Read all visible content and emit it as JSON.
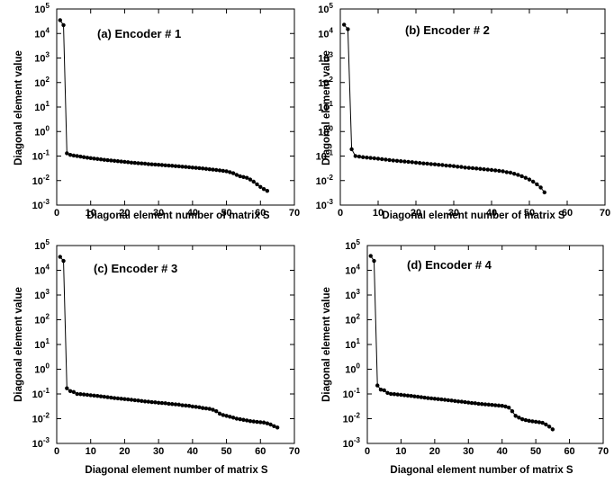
{
  "chart_data": [
    {
      "type": "line",
      "title": "(a)  Encoder  # 1",
      "xlabel": "Diagonal  element  number of  matrix S",
      "ylabel": "Diagonal  element  value",
      "xlim": [
        0,
        70
      ],
      "ylim": [
        0.001,
        100000
      ],
      "yscale": "log",
      "grid": false,
      "xticks": [
        "0",
        "10",
        "20",
        "30",
        "40",
        "50",
        "60",
        "70"
      ],
      "yticks": [
        {
          "base": "10",
          "exp": "-3"
        },
        {
          "base": "10",
          "exp": "-2"
        },
        {
          "base": "10",
          "exp": "-1"
        },
        {
          "base": "10",
          "exp": "0"
        },
        {
          "base": "10",
          "exp": "1"
        },
        {
          "base": "10",
          "exp": "2"
        },
        {
          "base": "10",
          "exp": "3"
        },
        {
          "base": "10",
          "exp": "4"
        },
        {
          "base": "10",
          "exp": "5"
        }
      ],
      "series": [
        {
          "count": 62,
          "values": [
            35000,
            22000,
            0.13,
            0.112,
            0.105,
            0.1,
            0.095,
            0.09,
            0.086,
            0.082,
            0.079,
            0.076,
            0.073,
            0.07,
            0.068,
            0.066,
            0.064,
            0.062,
            0.06,
            0.058,
            0.056,
            0.054,
            0.053,
            0.051,
            0.05,
            0.049,
            0.047,
            0.046,
            0.045,
            0.044,
            0.043,
            0.042,
            0.041,
            0.04,
            0.039,
            0.038,
            0.037,
            0.036,
            0.035,
            0.034,
            0.033,
            0.032,
            0.031,
            0.03,
            0.029,
            0.028,
            0.027,
            0.026,
            0.025,
            0.024,
            0.022,
            0.02,
            0.017,
            0.015,
            0.014,
            0.013,
            0.011,
            0.009,
            0.007,
            0.0055,
            0.0045,
            0.0038
          ]
        }
      ]
    },
    {
      "type": "line",
      "title": "(b)    Encoder  # 2",
      "xlabel": "Diagonal  element  number of  matrix S",
      "ylabel": "Diagonal  element  value",
      "xlim": [
        0,
        70
      ],
      "ylim": [
        0.001,
        100000
      ],
      "yscale": "log",
      "grid": false,
      "xticks": [
        "0",
        "10",
        "20",
        "30",
        "40",
        "50",
        "60",
        "70"
      ],
      "yticks": [
        {
          "base": "10",
          "exp": "-3"
        },
        {
          "base": "10",
          "exp": "-2"
        },
        {
          "base": "10",
          "exp": "-1"
        },
        {
          "base": "10",
          "exp": "0"
        },
        {
          "base": "10",
          "exp": "1"
        },
        {
          "base": "10",
          "exp": "2"
        },
        {
          "base": "10",
          "exp": "3"
        },
        {
          "base": "10",
          "exp": "4"
        },
        {
          "base": "10",
          "exp": "5"
        }
      ],
      "series": [
        {
          "count": 54,
          "values": [
            23000,
            15000,
            0.19,
            0.1,
            0.095,
            0.09,
            0.087,
            0.084,
            0.081,
            0.078,
            0.075,
            0.072,
            0.069,
            0.066,
            0.064,
            0.062,
            0.06,
            0.058,
            0.056,
            0.054,
            0.052,
            0.05,
            0.049,
            0.047,
            0.046,
            0.044,
            0.043,
            0.041,
            0.04,
            0.039,
            0.037,
            0.036,
            0.034,
            0.033,
            0.032,
            0.031,
            0.03,
            0.029,
            0.028,
            0.027,
            0.026,
            0.025,
            0.024,
            0.022,
            0.021,
            0.019,
            0.017,
            0.015,
            0.013,
            0.011,
            0.009,
            0.007,
            0.0052,
            0.0033
          ]
        }
      ]
    },
    {
      "type": "line",
      "title": "(c)  Encoder  # 3",
      "xlabel": "Diagonal  element  number of  matrix S",
      "ylabel": "Diagonal  element  value",
      "xlim": [
        0,
        70
      ],
      "ylim": [
        0.001,
        100000
      ],
      "yscale": "log",
      "grid": false,
      "xticks": [
        "0",
        "10",
        "20",
        "30",
        "40",
        "50",
        "60",
        "70"
      ],
      "yticks": [
        {
          "base": "10",
          "exp": "-3"
        },
        {
          "base": "10",
          "exp": "-2"
        },
        {
          "base": "10",
          "exp": "-1"
        },
        {
          "base": "10",
          "exp": "0"
        },
        {
          "base": "10",
          "exp": "1"
        },
        {
          "base": "10",
          "exp": "2"
        },
        {
          "base": "10",
          "exp": "3"
        },
        {
          "base": "10",
          "exp": "4"
        },
        {
          "base": "10",
          "exp": "5"
        }
      ],
      "series": [
        {
          "count": 65,
          "values": [
            35000,
            24000,
            0.17,
            0.13,
            0.12,
            0.1,
            0.098,
            0.095,
            0.092,
            0.089,
            0.086,
            0.083,
            0.08,
            0.077,
            0.074,
            0.071,
            0.068,
            0.066,
            0.064,
            0.062,
            0.06,
            0.058,
            0.056,
            0.054,
            0.052,
            0.05,
            0.049,
            0.047,
            0.046,
            0.044,
            0.043,
            0.042,
            0.04,
            0.039,
            0.038,
            0.037,
            0.035,
            0.034,
            0.033,
            0.031,
            0.03,
            0.029,
            0.027,
            0.026,
            0.025,
            0.023,
            0.02,
            0.016,
            0.014,
            0.013,
            0.012,
            0.011,
            0.01,
            0.0095,
            0.009,
            0.0085,
            0.008,
            0.0077,
            0.0074,
            0.0072,
            0.007,
            0.0065,
            0.0058,
            0.005,
            0.0044
          ]
        }
      ]
    },
    {
      "type": "line",
      "title": "(d)   Encoder  # 4",
      "xlabel": "Diagonal  element  number of  matrix S",
      "ylabel": "Diagonal  element  value",
      "xlim": [
        0,
        70
      ],
      "ylim": [
        0.001,
        100000
      ],
      "yscale": "log",
      "grid": false,
      "xticks": [
        "0",
        "10",
        "20",
        "30",
        "40",
        "50",
        "60",
        "70"
      ],
      "yticks": [
        {
          "base": "10",
          "exp": "-3"
        },
        {
          "base": "10",
          "exp": "-2"
        },
        {
          "base": "10",
          "exp": "-1"
        },
        {
          "base": "10",
          "exp": "0"
        },
        {
          "base": "10",
          "exp": "1"
        },
        {
          "base": "10",
          "exp": "2"
        },
        {
          "base": "10",
          "exp": "3"
        },
        {
          "base": "10",
          "exp": "4"
        },
        {
          "base": "10",
          "exp": "5"
        }
      ],
      "series": [
        {
          "count": 55,
          "values": [
            38000,
            24000,
            0.22,
            0.15,
            0.14,
            0.11,
            0.1,
            0.098,
            0.095,
            0.092,
            0.089,
            0.086,
            0.083,
            0.08,
            0.077,
            0.074,
            0.071,
            0.068,
            0.066,
            0.064,
            0.062,
            0.06,
            0.058,
            0.056,
            0.054,
            0.052,
            0.05,
            0.049,
            0.047,
            0.045,
            0.043,
            0.042,
            0.04,
            0.039,
            0.038,
            0.037,
            0.036,
            0.035,
            0.034,
            0.033,
            0.031,
            0.028,
            0.02,
            0.013,
            0.011,
            0.0095,
            0.0088,
            0.0082,
            0.0078,
            0.0075,
            0.0072,
            0.0068,
            0.0058,
            0.0048,
            0.0037
          ]
        }
      ]
    }
  ]
}
